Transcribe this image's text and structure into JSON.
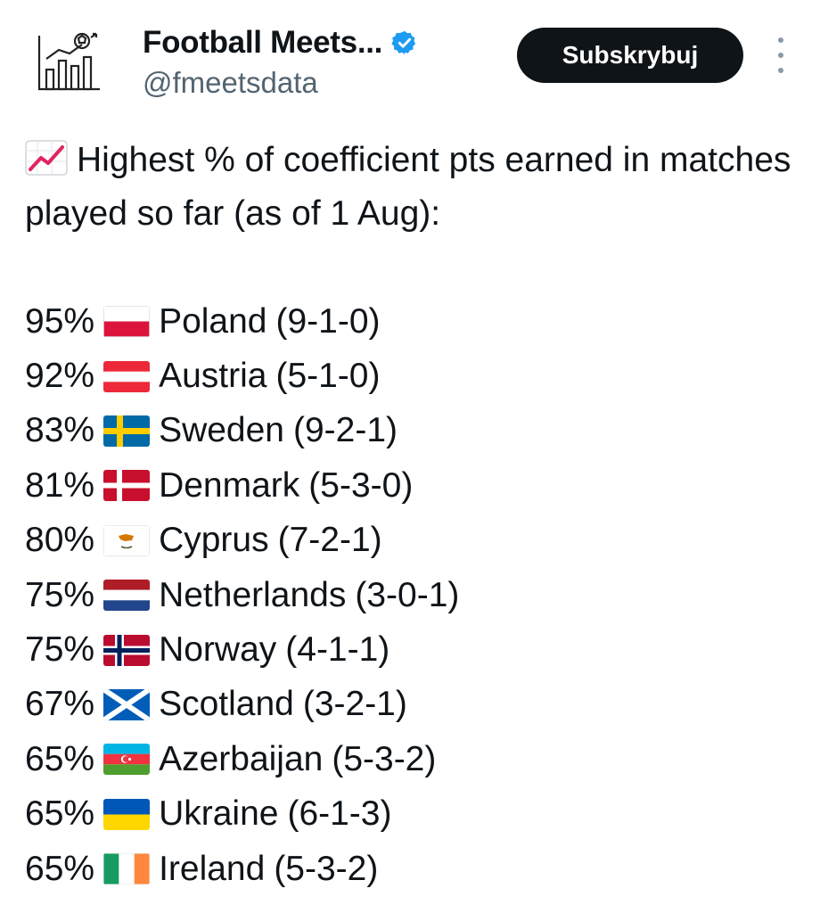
{
  "account": {
    "display_name": "Football Meets...",
    "handle": "@fmeetsdata",
    "avatar_icon": "bar-chart-football-logo-icon",
    "verified_icon": "verified-badge-icon",
    "verified_color": "#1d9bf0"
  },
  "actions": {
    "subscribe_label": "Subskrybuj",
    "more_icon": "more-vertical-icon"
  },
  "tweet": {
    "headline_icon": "chart-increasing-emoji-icon",
    "headline": "Highest % of coefficient pts earned in matches played so far (as of 1 Aug):",
    "rows": [
      {
        "pct": "95%",
        "flag": "poland-flag-icon",
        "country": "Poland",
        "record": "(9-1-0)"
      },
      {
        "pct": "92%",
        "flag": "austria-flag-icon",
        "country": "Austria",
        "record": "(5-1-0)"
      },
      {
        "pct": "83%",
        "flag": "sweden-flag-icon",
        "country": "Sweden",
        "record": "(9-2-1)"
      },
      {
        "pct": "81%",
        "flag": "denmark-flag-icon",
        "country": "Denmark",
        "record": "(5-3-0)"
      },
      {
        "pct": "80%",
        "flag": "cyprus-flag-icon",
        "country": "Cyprus",
        "record": "(7-2-1)"
      },
      {
        "pct": "75%",
        "flag": "netherlands-flag-icon",
        "country": "Netherlands",
        "record": "(3-0-1)"
      },
      {
        "pct": "75%",
        "flag": "norway-flag-icon",
        "country": "Norway",
        "record": "(4-1-1)"
      },
      {
        "pct": "67%",
        "flag": "scotland-flag-icon",
        "country": "Scotland",
        "record": "(3-2-1)"
      },
      {
        "pct": "65%",
        "flag": "azerbaijan-flag-icon",
        "country": "Azerbaijan",
        "record": "(5-3-2)"
      },
      {
        "pct": "65%",
        "flag": "ukraine-flag-icon",
        "country": "Ukraine",
        "record": "(6-1-3)"
      },
      {
        "pct": "65%",
        "flag": "ireland-flag-icon",
        "country": "Ireland",
        "record": "(5-3-2)"
      }
    ]
  }
}
